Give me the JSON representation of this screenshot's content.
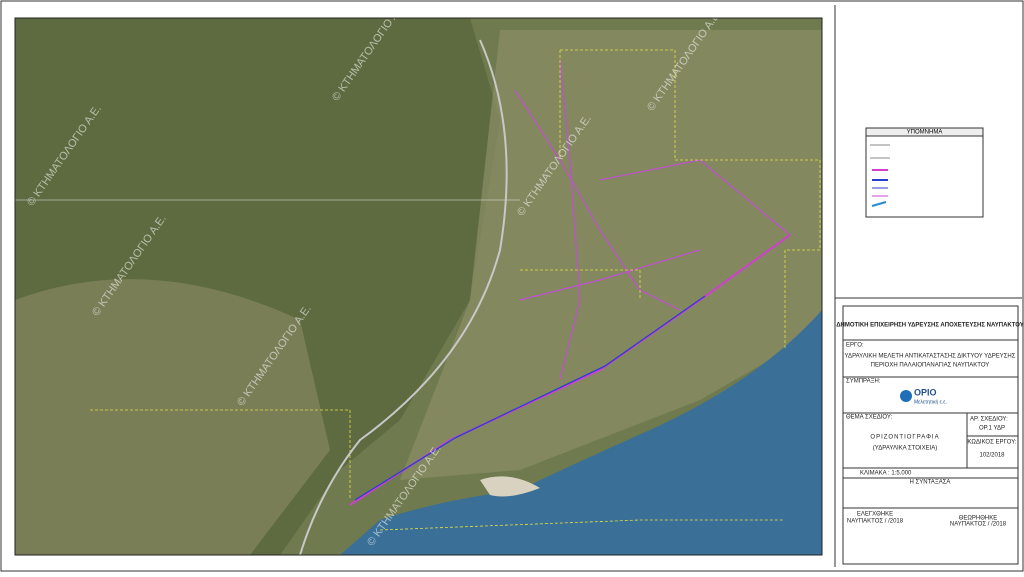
{
  "map": {
    "watermarks": [
      "© ΚΤΗΜΑΤΟΛΟΓΙΟ Α.Ε.",
      "© ΚΤΗΜΑΤΟΛΟΓΙΟ Α.Ε.",
      "© ΚΤΗΜΑΤΟΛΟΓΙΟ Α.Ε.",
      "© ΚΤΗΜΑΤΟΛΟΓΙΟ Α.Ε.",
      "© ΚΤΗΜΑΤΟΛΟΓΙΟ Α.Ε.",
      "© ΚΤΗΜΑΤΟΛΟΓΙΟ Α.Ε.",
      "© ΚΤΗΜΑΤΟΛΟΓΙΟ Α.Ε."
    ]
  },
  "legend": {
    "title": "ΥΠΟΜΝΗΜΑ"
  },
  "title_block": {
    "client": "ΔΗΜΟΤΙΚΗ ΕΠΙΧΕΙΡΗΣΗ ΥΔΡΕΥΣΗΣ ΑΠΟΧΕΤΕΥΣΗΣ ΝΑΥΠΑΚΤΟΥ",
    "project_label": "ΕΡΓΟ:",
    "project_line1": "ΥΔΡΑΥΛΙΚΗ ΜΕΛΕΤΗ ΑΝΤΙΚΑΤΑΣΤΑΣΗΣ ΔΙΚΤΥΟΥ ΥΔΡΕΥΣΗΣ",
    "project_line2": "ΠΕΡΙΟΧΗ ΠΑΛΑΙΟΠΑΝΑΓΙΑΣ ΝΑΥΠΑΚΤΟΥ",
    "partnership_label": "ΣΥΜΠΡΑΞΗ:",
    "company_name": "ΟΡΙΟ",
    "company_sub": "Μελετητική ε.ε.",
    "subject_label": "ΘΕΜΑ ΣΧΕΔΙΟΥ:",
    "subject_line1": "ΟΡΙΖΟΝΤΙΟΓΡΑΦΙΑ",
    "subject_line2": "(ΥΔΡΑΥΛΙΚΑ ΣΤΟΙΧΕΙΑ)",
    "drawing_no_label": "ΑΡ. ΣΧΕΔΙΟΥ:",
    "drawing_no": "ΟΡ.1 ΥΔΡ",
    "project_code_label": "ΚΩΔΙΚΟΣ ΕΡΓΟΥ:",
    "project_code": "102/2018",
    "scale": "ΚΛΙΜΑΚΑ : 1:5.000",
    "author_label": "Η ΣΥΝΤΑΞΑΣΑ",
    "checked_label": "ΕΛΕΓΧΘΗΚΕ",
    "checked_place": "ΝΑΥΠΑΚΤΟΣ  /  /2018",
    "approved_label": "ΘΕΩΡΗΘΗΚΕ",
    "approved_place": "ΝΑΥΠΑΚΤΟΣ  /  /2018"
  }
}
